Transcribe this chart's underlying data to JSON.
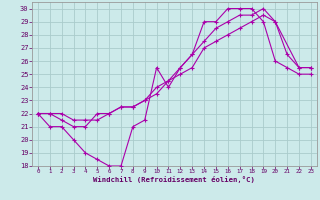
{
  "bg_color": "#cceaea",
  "grid_color": "#aacccc",
  "line_color": "#aa00aa",
  "xlabel": "Windchill (Refroidissement éolien,°C)",
  "xlim": [
    -0.5,
    23.5
  ],
  "ylim": [
    18,
    30.5
  ],
  "xticks": [
    0,
    1,
    2,
    3,
    4,
    5,
    6,
    7,
    8,
    9,
    10,
    11,
    12,
    13,
    14,
    15,
    16,
    17,
    18,
    19,
    20,
    21,
    22,
    23
  ],
  "yticks": [
    18,
    19,
    20,
    21,
    22,
    23,
    24,
    25,
    26,
    27,
    28,
    29,
    30
  ],
  "line1_x": [
    0,
    1,
    2,
    3,
    4,
    5,
    6,
    7,
    8,
    9,
    10,
    11,
    12,
    13,
    14,
    15,
    16,
    17,
    18,
    19,
    20,
    21,
    22,
    23
  ],
  "line1_y": [
    22,
    21,
    21,
    20,
    19,
    18.5,
    18,
    18,
    21,
    21.5,
    25.5,
    24,
    25.5,
    26.5,
    29,
    29,
    30,
    30,
    30,
    29,
    26,
    25.5,
    25,
    25
  ],
  "line2_x": [
    0,
    1,
    2,
    3,
    4,
    5,
    6,
    7,
    8,
    9,
    10,
    11,
    12,
    13,
    14,
    15,
    16,
    17,
    18,
    19,
    20,
    22,
    23
  ],
  "line2_y": [
    22,
    22,
    21.5,
    21,
    21,
    22,
    22,
    22.5,
    22.5,
    23,
    24,
    24.5,
    25,
    25.5,
    27,
    27.5,
    28,
    28.5,
    29,
    29.5,
    29,
    25.5,
    25.5
  ],
  "line3_x": [
    0,
    1,
    2,
    3,
    4,
    5,
    6,
    7,
    8,
    9,
    10,
    11,
    12,
    13,
    14,
    15,
    16,
    17,
    18,
    19,
    20,
    21,
    22,
    23
  ],
  "line3_y": [
    22,
    22,
    22,
    21.5,
    21.5,
    21.5,
    22,
    22.5,
    22.5,
    23,
    23.5,
    24.5,
    25.5,
    26.5,
    27.5,
    28.5,
    29,
    29.5,
    29.5,
    30,
    29,
    26.5,
    25.5,
    25.5
  ]
}
